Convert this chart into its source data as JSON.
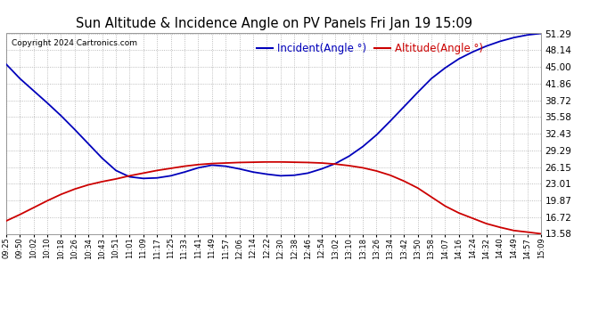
{
  "title": "Sun Altitude & Incidence Angle on PV Panels Fri Jan 19 15:09",
  "copyright": "Copyright 2024 Cartronics.com",
  "legend_incident": "Incident(Angle °)",
  "legend_altitude": "Altitude(Angle °)",
  "incident_color": "#0000bb",
  "altitude_color": "#cc0000",
  "background_color": "#ffffff",
  "plot_bg_color": "#ffffff",
  "grid_color": "#aaaaaa",
  "ylim_min": 13.58,
  "ylim_max": 51.29,
  "ytick_values": [
    13.58,
    16.72,
    19.87,
    23.01,
    26.15,
    29.29,
    32.43,
    35.58,
    38.72,
    41.86,
    45.0,
    48.14,
    51.29
  ],
  "x_labels": [
    "09:25",
    "09:50",
    "10:02",
    "10:10",
    "10:18",
    "10:26",
    "10:34",
    "10:43",
    "10:51",
    "11:01",
    "11:09",
    "11:17",
    "11:25",
    "11:33",
    "11:41",
    "11:49",
    "11:57",
    "12:06",
    "12:14",
    "12:22",
    "12:30",
    "12:38",
    "12:46",
    "12:54",
    "13:02",
    "13:10",
    "13:18",
    "13:26",
    "13:34",
    "13:42",
    "13:50",
    "13:58",
    "14:07",
    "14:16",
    "14:24",
    "14:32",
    "14:40",
    "14:49",
    "14:57",
    "15:09"
  ],
  "incident_y": [
    45.5,
    42.8,
    40.5,
    38.2,
    35.8,
    33.2,
    30.5,
    27.8,
    25.5,
    24.3,
    24.0,
    24.1,
    24.5,
    25.2,
    26.0,
    26.5,
    26.3,
    25.8,
    25.2,
    24.8,
    24.5,
    24.6,
    25.0,
    25.8,
    26.8,
    28.2,
    30.0,
    32.2,
    34.8,
    37.5,
    40.2,
    42.8,
    44.8,
    46.5,
    47.8,
    48.9,
    49.8,
    50.5,
    51.0,
    51.29
  ],
  "altitude_y": [
    16.0,
    17.2,
    18.5,
    19.8,
    21.0,
    22.0,
    22.8,
    23.4,
    23.9,
    24.5,
    25.0,
    25.5,
    25.9,
    26.3,
    26.6,
    26.8,
    26.9,
    27.0,
    27.05,
    27.1,
    27.1,
    27.05,
    27.0,
    26.9,
    26.7,
    26.4,
    26.0,
    25.4,
    24.6,
    23.5,
    22.2,
    20.5,
    18.8,
    17.5,
    16.5,
    15.5,
    14.8,
    14.2,
    13.9,
    13.58
  ]
}
